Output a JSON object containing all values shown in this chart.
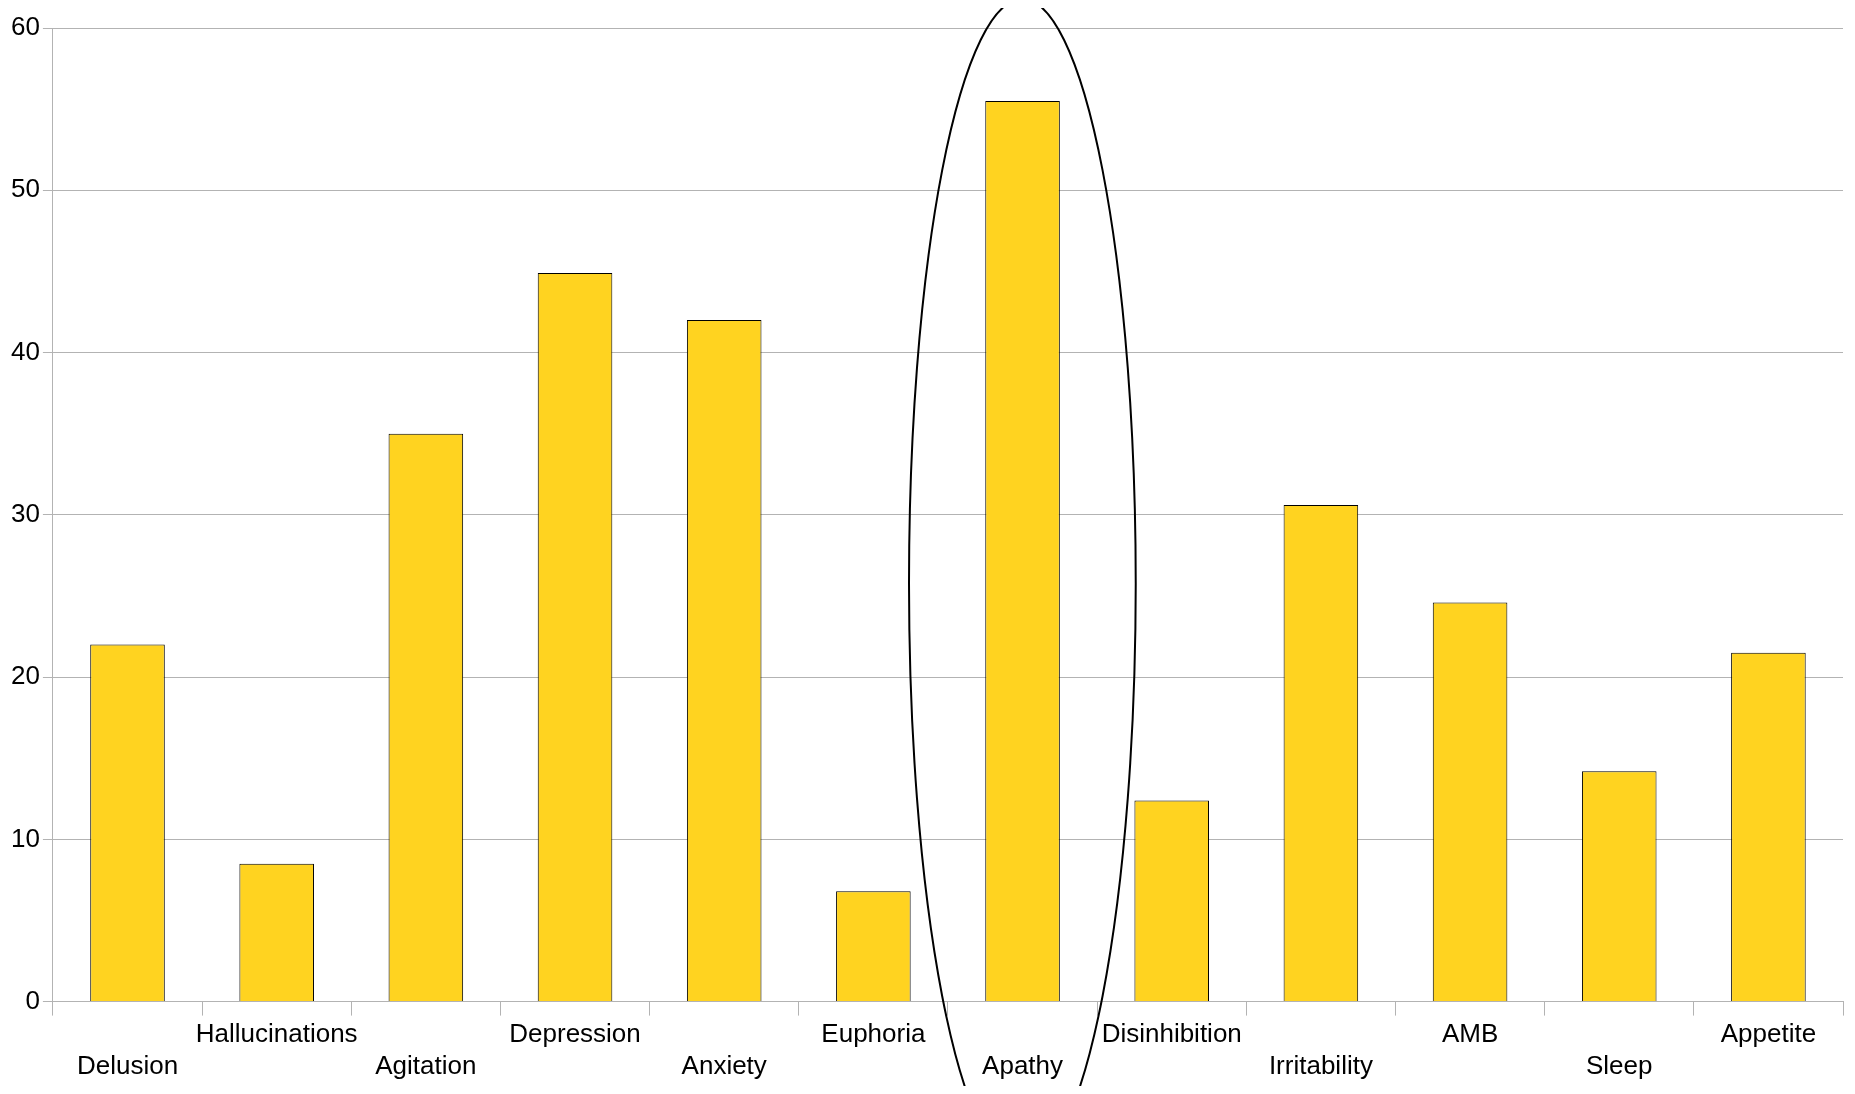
{
  "chart_data": {
    "type": "bar",
    "categories": [
      "Delusion",
      "Hallucinations",
      "Agitation",
      "Depression",
      "Anxiety",
      "Euphoria",
      "Apathy",
      "Disinhibition",
      "Irritability",
      "AMB",
      "Sleep",
      "Appetite"
    ],
    "values": [
      22,
      8.5,
      35,
      44.9,
      42,
      6.8,
      55.5,
      12.4,
      30.6,
      24.6,
      14.2,
      21.5
    ],
    "color": "#ffd320",
    "ylim": [
      0,
      60
    ],
    "yticks": [
      0,
      10,
      20,
      30,
      40,
      50,
      60
    ],
    "grid": "y",
    "legend": false
  }
}
